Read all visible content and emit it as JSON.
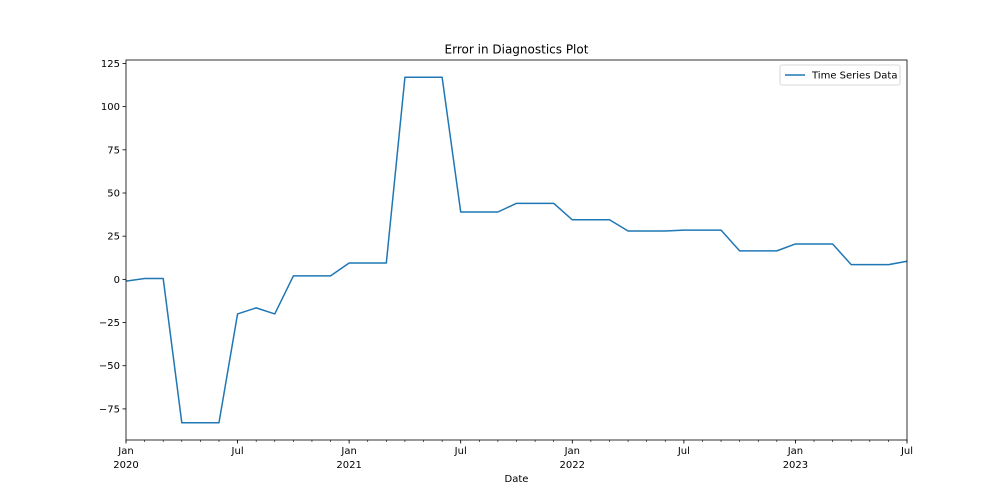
{
  "chart_data": {
    "type": "line",
    "title": "Error in Diagnostics Plot",
    "xlabel": "Date",
    "ylabel": "",
    "xlim": [
      "2020-01",
      "2023-07"
    ],
    "ylim": [
      -93,
      127
    ],
    "grid": false,
    "legend_position": "top-right",
    "series": [
      {
        "name": "Time Series Data",
        "color": "#1f77b4",
        "x": [
          "2020-01",
          "2020-02",
          "2020-03",
          "2020-04",
          "2020-05",
          "2020-06",
          "2020-07",
          "2020-08",
          "2020-09",
          "2020-10",
          "2020-11",
          "2020-12",
          "2021-01",
          "2021-02",
          "2021-03",
          "2021-04",
          "2021-05",
          "2021-06",
          "2021-07",
          "2021-08",
          "2021-09",
          "2021-10",
          "2021-11",
          "2021-12",
          "2022-01",
          "2022-02",
          "2022-03",
          "2022-04",
          "2022-05",
          "2022-06",
          "2022-07",
          "2022-08",
          "2022-09",
          "2022-10",
          "2022-11",
          "2022-12",
          "2023-01",
          "2023-02",
          "2023-03",
          "2023-04",
          "2023-05",
          "2023-06",
          "2023-07"
        ],
        "values": [
          -1,
          0.5,
          0.5,
          -83,
          -83,
          -83,
          -20,
          -16.5,
          -20,
          2,
          2,
          2,
          9.5,
          9.5,
          9.5,
          117,
          117,
          117,
          39,
          39,
          39,
          44,
          44,
          44,
          34.5,
          34.5,
          34.5,
          28,
          28,
          28,
          28.5,
          28.5,
          28.5,
          16.5,
          16.5,
          16.5,
          20.5,
          20.5,
          20.5,
          8.5,
          8.5,
          8.5,
          10.5
        ]
      }
    ],
    "yticks": [
      {
        "value": 125,
        "label": "125"
      },
      {
        "value": 100,
        "label": "100"
      },
      {
        "value": 75,
        "label": "75"
      },
      {
        "value": 50,
        "label": "50"
      },
      {
        "value": 25,
        "label": "25"
      },
      {
        "value": 0,
        "label": "0"
      },
      {
        "value": -25,
        "label": "−25"
      },
      {
        "value": -50,
        "label": "−50"
      },
      {
        "value": -75,
        "label": "−75"
      }
    ],
    "xticks_major": [
      {
        "date": "2020-01",
        "label": "Jan",
        "sublabel": "2020"
      },
      {
        "date": "2020-07",
        "label": "Jul",
        "sublabel": ""
      },
      {
        "date": "2021-01",
        "label": "Jan",
        "sublabel": "2021"
      },
      {
        "date": "2021-07",
        "label": "Jul",
        "sublabel": ""
      },
      {
        "date": "2022-01",
        "label": "Jan",
        "sublabel": "2022"
      },
      {
        "date": "2022-07",
        "label": "Jul",
        "sublabel": ""
      },
      {
        "date": "2023-01",
        "label": "Jan",
        "sublabel": "2023"
      },
      {
        "date": "2023-07",
        "label": "Jul",
        "sublabel": ""
      }
    ]
  }
}
